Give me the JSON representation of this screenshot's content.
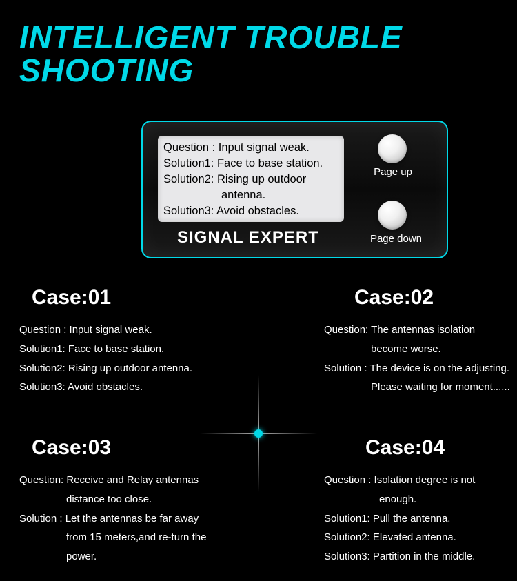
{
  "colors": {
    "background": "#000000",
    "accent": "#00d9e8",
    "text": "#ffffff",
    "screen_bg": "#e8e8ea",
    "screen_text": "#000000"
  },
  "title": {
    "line1": "INTELLIGENT TROUBLE",
    "line2": "SHOOTING",
    "fontsize": 46,
    "color": "#00d9e8"
  },
  "device": {
    "label": "SIGNAL EXPERT",
    "border_color": "#00d9e8",
    "screen": {
      "lines": [
        "Question : Input signal weak.",
        "Solution1: Face to base station.",
        "Solution2: Rising up outdoor",
        "antenna.",
        "Solution3: Avoid obstacles."
      ],
      "indent_line_index": 3,
      "bg_color": "#e8e8ea",
      "text_color": "#000000",
      "fontsize": 16.5
    },
    "buttons": {
      "up_label": "Page up",
      "down_label": "Page down"
    }
  },
  "cross": {
    "dot_color": "#00d9e8",
    "line_length": 170
  },
  "cases": [
    {
      "id": "01",
      "title": "Case:01",
      "lines": [
        {
          "text": "Question : Input signal weak.",
          "indent": 0
        },
        {
          "text": "Solution1: Face to base station.",
          "indent": 0
        },
        {
          "text": "Solution2: Rising up outdoor antenna.",
          "indent": 0
        },
        {
          "text": "Solution3: Avoid obstacles.",
          "indent": 0
        }
      ]
    },
    {
      "id": "02",
      "title": "Case:02",
      "lines": [
        {
          "text": "Question: The antennas isolation",
          "indent": 0
        },
        {
          "text": "become worse.",
          "indent": 68
        },
        {
          "text": "Solution : The device is on the adjusting.",
          "indent": 0
        },
        {
          "text": "Please waiting for moment......",
          "indent": 68
        }
      ]
    },
    {
      "id": "03",
      "title": "Case:03",
      "lines": [
        {
          "text": "Question: Receive and Relay antennas",
          "indent": 0
        },
        {
          "text": "distance too close.",
          "indent": 68
        },
        {
          "text": "Solution : Let the antennas be far away",
          "indent": 0
        },
        {
          "text": "from 15 meters,and re-turn the",
          "indent": 68
        },
        {
          "text": "power.",
          "indent": 68
        }
      ]
    },
    {
      "id": "04",
      "title": "Case:04",
      "lines": [
        {
          "text": "Question :  Isolation degree is not",
          "indent": 0
        },
        {
          "text": "enough.",
          "indent": 80
        },
        {
          "text": "Solution1:  Pull the antenna.",
          "indent": 0
        },
        {
          "text": "Solution2:  Elevated antenna.",
          "indent": 0
        },
        {
          "text": "Solution3:  Partition in the middle.",
          "indent": 0
        }
      ]
    }
  ]
}
